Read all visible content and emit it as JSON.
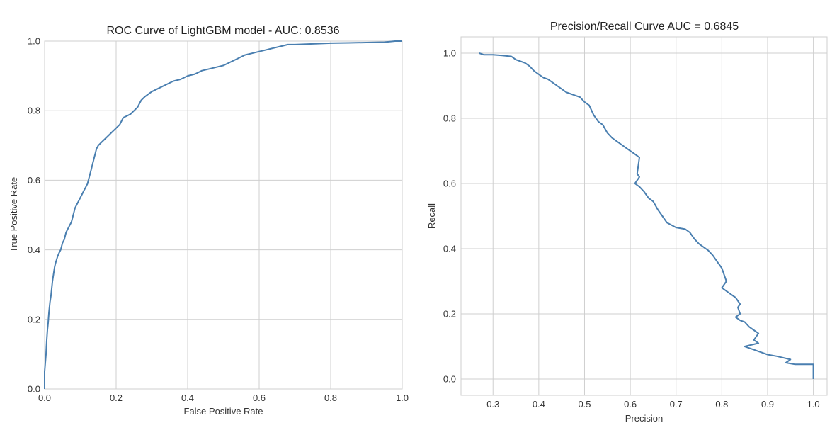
{
  "chart_data": [
    {
      "type": "line",
      "title": "ROC Curve of LightGBM model - AUC: 0.8536",
      "xlabel": "False Positive Rate",
      "ylabel": "True Positive Rate",
      "xlim": [
        0,
        1
      ],
      "ylim": [
        0,
        1
      ],
      "xticks": [
        0,
        0.2,
        0.4,
        0.6,
        0.8,
        1
      ],
      "xtick_labels": [
        "0.0",
        "0.2",
        "0.4",
        "0.6",
        "0.8",
        "1.0"
      ],
      "yticks": [
        0,
        0.2,
        0.4,
        0.6,
        0.8,
        1
      ],
      "ytick_labels": [
        "0.0",
        "0.2",
        "0.4",
        "0.6",
        "0.8",
        "1.0"
      ],
      "grid": true,
      "legend": false,
      "color": "#4a7fb0",
      "series": [
        {
          "x": [
            0,
            0,
            0.004,
            0.006,
            0.008,
            0.01,
            0.012,
            0.015,
            0.018,
            0.02,
            0.022,
            0.025,
            0.028,
            0.03,
            0.033,
            0.036,
            0.04,
            0.045,
            0.05,
            0.055,
            0.06,
            0.065,
            0.07,
            0.075,
            0.08,
            0.085,
            0.09,
            0.095,
            0.1,
            0.105,
            0.11,
            0.115,
            0.12,
            0.125,
            0.13,
            0.135,
            0.14,
            0.145,
            0.15,
            0.155,
            0.16,
            0.17,
            0.18,
            0.19,
            0.2,
            0.21,
            0.22,
            0.23,
            0.24,
            0.25,
            0.26,
            0.27,
            0.28,
            0.3,
            0.32,
            0.34,
            0.36,
            0.38,
            0.4,
            0.42,
            0.44,
            0.46,
            0.48,
            0.5,
            0.52,
            0.54,
            0.56,
            0.58,
            0.6,
            0.62,
            0.64,
            0.66,
            0.68,
            0.7,
            0.75,
            0.8,
            0.85,
            0.9,
            0.95,
            0.97,
            0.98,
            1
          ],
          "y": [
            0,
            0.05,
            0.1,
            0.14,
            0.17,
            0.19,
            0.22,
            0.25,
            0.27,
            0.29,
            0.31,
            0.33,
            0.35,
            0.36,
            0.37,
            0.38,
            0.39,
            0.4,
            0.42,
            0.43,
            0.45,
            0.46,
            0.47,
            0.48,
            0.5,
            0.52,
            0.53,
            0.54,
            0.55,
            0.56,
            0.57,
            0.58,
            0.59,
            0.61,
            0.63,
            0.65,
            0.67,
            0.69,
            0.7,
            0.705,
            0.71,
            0.72,
            0.73,
            0.74,
            0.75,
            0.76,
            0.78,
            0.785,
            0.79,
            0.8,
            0.81,
            0.83,
            0.84,
            0.855,
            0.865,
            0.875,
            0.885,
            0.89,
            0.9,
            0.905,
            0.915,
            0.92,
            0.925,
            0.93,
            0.94,
            0.95,
            0.96,
            0.965,
            0.97,
            0.975,
            0.98,
            0.985,
            0.99,
            0.99,
            0.992,
            0.994,
            0.995,
            0.996,
            0.997,
            0.999,
            1,
            1
          ]
        }
      ]
    },
    {
      "type": "line",
      "title": "Precision/Recall Curve AUC = 0.6845",
      "xlabel": "Precision",
      "ylabel": "Recall",
      "xlim": [
        0.23,
        1.03
      ],
      "ylim": [
        -0.05,
        1.05
      ],
      "xticks": [
        0.3,
        0.4,
        0.5,
        0.6,
        0.7,
        0.8,
        0.9,
        1
      ],
      "xtick_labels": [
        "0.3",
        "0.4",
        "0.5",
        "0.6",
        "0.7",
        "0.8",
        "0.9",
        "1.0"
      ],
      "yticks": [
        0,
        0.2,
        0.4,
        0.6,
        0.8,
        1
      ],
      "ytick_labels": [
        "0.0",
        "0.2",
        "0.4",
        "0.6",
        "0.8",
        "1.0"
      ],
      "grid": true,
      "legend": false,
      "color": "#4a7fb0",
      "series": [
        {
          "x": [
            0.27,
            0.28,
            0.3,
            0.32,
            0.34,
            0.35,
            0.36,
            0.37,
            0.38,
            0.39,
            0.4,
            0.41,
            0.42,
            0.43,
            0.44,
            0.45,
            0.46,
            0.47,
            0.48,
            0.49,
            0.5,
            0.51,
            0.52,
            0.53,
            0.54,
            0.55,
            0.56,
            0.57,
            0.58,
            0.59,
            0.6,
            0.61,
            0.62,
            0.615,
            0.62,
            0.61,
            0.62,
            0.63,
            0.64,
            0.65,
            0.66,
            0.67,
            0.68,
            0.7,
            0.72,
            0.73,
            0.74,
            0.75,
            0.76,
            0.77,
            0.78,
            0.79,
            0.8,
            0.81,
            0.8,
            0.81,
            0.82,
            0.83,
            0.84,
            0.835,
            0.84,
            0.83,
            0.84,
            0.85,
            0.86,
            0.87,
            0.88,
            0.87,
            0.88,
            0.85,
            0.86,
            0.87,
            0.88,
            0.89,
            0.9,
            0.92,
            0.95,
            0.94,
            0.96,
            1,
            1
          ],
          "y": [
            1,
            0.995,
            0.995,
            0.993,
            0.99,
            0.98,
            0.975,
            0.97,
            0.96,
            0.945,
            0.935,
            0.925,
            0.92,
            0.91,
            0.9,
            0.89,
            0.88,
            0.875,
            0.87,
            0.865,
            0.85,
            0.84,
            0.81,
            0.79,
            0.78,
            0.755,
            0.74,
            0.73,
            0.72,
            0.71,
            0.7,
            0.69,
            0.68,
            0.63,
            0.62,
            0.6,
            0.59,
            0.575,
            0.555,
            0.545,
            0.52,
            0.5,
            0.48,
            0.465,
            0.46,
            0.45,
            0.43,
            0.415,
            0.405,
            0.395,
            0.38,
            0.36,
            0.34,
            0.3,
            0.28,
            0.27,
            0.26,
            0.25,
            0.23,
            0.22,
            0.2,
            0.19,
            0.18,
            0.175,
            0.16,
            0.15,
            0.14,
            0.12,
            0.11,
            0.1,
            0.095,
            0.09,
            0.085,
            0.08,
            0.075,
            0.07,
            0.06,
            0.05,
            0.045,
            0.045,
            0
          ]
        }
      ]
    }
  ]
}
